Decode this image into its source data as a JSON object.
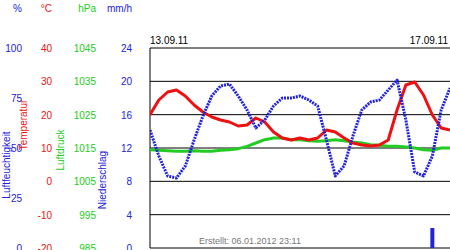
{
  "chart_data": {
    "type": "line",
    "categories": [
      "13.09.11",
      null,
      null,
      null,
      null,
      null,
      null,
      null,
      null,
      null,
      null,
      null,
      null,
      null,
      null,
      null,
      null,
      null,
      null,
      null,
      null,
      null,
      null,
      null,
      null,
      null,
      null,
      null,
      null,
      null,
      null,
      null,
      "17.09.11",
      null,
      null
    ],
    "annotation": "Erstellt: 06.01.2012 23:11",
    "grid": true,
    "series": [
      {
        "name": "Luftfeuchtigkeit",
        "unit": "%",
        "color": "#2222dd",
        "line_style": "dotted",
        "ylim": [
          0,
          100
        ],
        "yticks": [
          0,
          25,
          50,
          75,
          100
        ],
        "values": [
          59,
          46,
          36,
          35,
          41,
          54,
          66,
          76,
          81,
          82,
          76,
          69,
          60,
          64,
          71,
          75,
          75,
          76,
          74,
          71,
          54,
          36,
          41,
          56,
          69,
          73,
          74,
          79,
          84,
          64,
          38,
          36,
          46,
          69,
          80
        ]
      },
      {
        "name": "Temperatur",
        "unit": "°C",
        "color": "#ee1111",
        "line_style": "solid",
        "ylim": [
          -20,
          40
        ],
        "yticks": [
          -20,
          -10,
          0,
          10,
          20,
          30,
          40
        ],
        "values": [
          20,
          24.4,
          26.8,
          27.4,
          25.6,
          22.9,
          20.8,
          19.3,
          18.4,
          17.8,
          16.6,
          16.9,
          19,
          17.8,
          14.8,
          13,
          12.4,
          13,
          12.4,
          13,
          15.4,
          14.8,
          13,
          11.5,
          10.9,
          10.6,
          10.9,
          12.4,
          21.4,
          28.9,
          29.8,
          25.9,
          19.9,
          16,
          15.4
        ]
      },
      {
        "name": "Luftdruck",
        "unit": "hPa",
        "color": "#22cc22",
        "line_style": "solid",
        "ylim": [
          985,
          1045
        ],
        "yticks": [
          985,
          995,
          1005,
          1015,
          1025,
          1035,
          1045
        ],
        "values": [
          1014.5,
          1014.3,
          1014.2,
          1014,
          1014,
          1014.2,
          1014,
          1014,
          1014.3,
          1014.5,
          1014.8,
          1015.5,
          1016.5,
          1017.5,
          1018,
          1018,
          1017.5,
          1017.5,
          1017.2,
          1017,
          1017.2,
          1017.5,
          1017.2,
          1016.8,
          1016.5,
          1016,
          1015.8,
          1015.5,
          1015.5,
          1015.3,
          1015,
          1014.5,
          1014.3,
          1015,
          1015
        ]
      },
      {
        "name": "Niederschlag",
        "unit": "mm/h",
        "color": "#2222dd",
        "type": "bar",
        "ylim": [
          0,
          24
        ],
        "yticks": [
          0,
          4,
          8,
          12,
          16,
          20,
          24
        ],
        "values": [
          0,
          0,
          0,
          0,
          0,
          0,
          0,
          0,
          0,
          0,
          0,
          0,
          0,
          0,
          0,
          0,
          0,
          0,
          0,
          0,
          0,
          0,
          0,
          0,
          0,
          0,
          0,
          0,
          0,
          0,
          0,
          0,
          2.4,
          0,
          0
        ]
      }
    ]
  }
}
